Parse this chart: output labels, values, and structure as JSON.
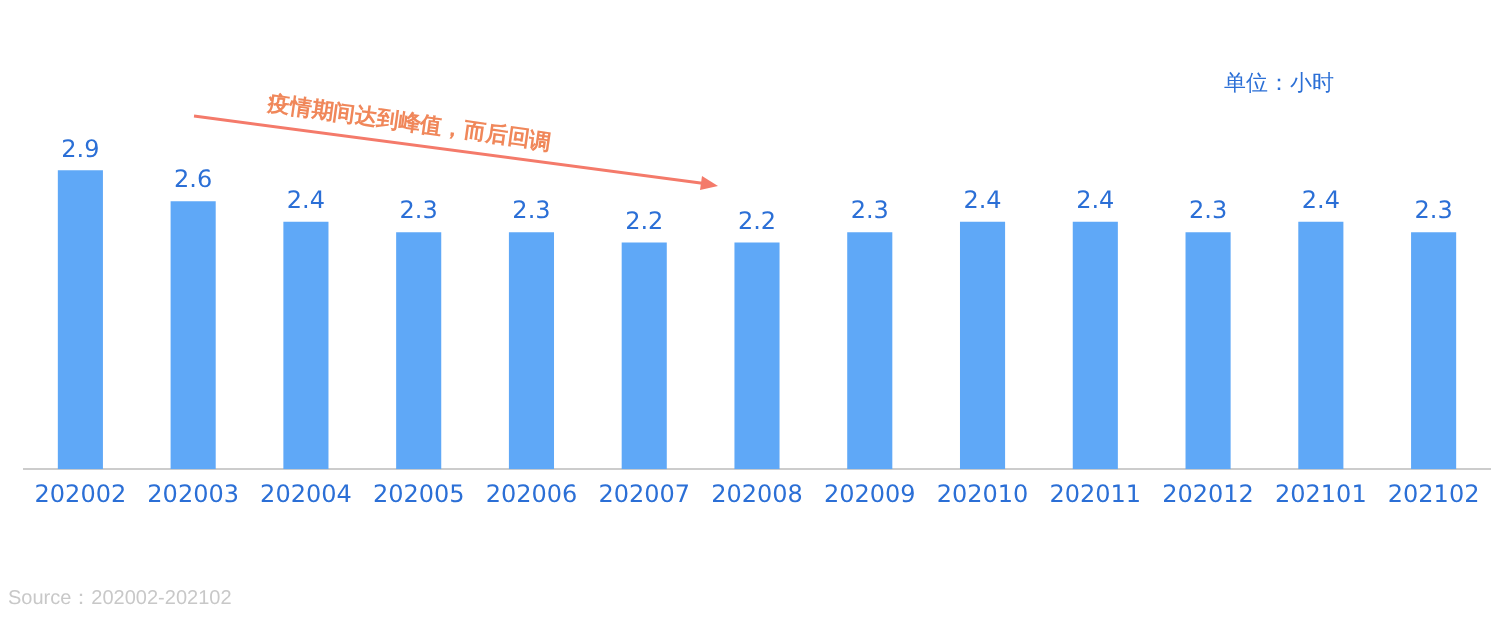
{
  "chart_data": {
    "type": "bar",
    "categories": [
      "202002",
      "202003",
      "202004",
      "202005",
      "202006",
      "202007",
      "202008",
      "202009",
      "202010",
      "202011",
      "202012",
      "202101",
      "202102"
    ],
    "values": [
      2.9,
      2.6,
      2.4,
      2.3,
      2.3,
      2.2,
      2.2,
      2.3,
      2.4,
      2.4,
      2.3,
      2.4,
      2.3
    ],
    "color": "#5fa8f7",
    "data_labels": true,
    "grid": false,
    "legend": false,
    "annotations": [
      "疫情期间达到峰值，而后回调",
      "单位：小时",
      "Source：202002-202102"
    ]
  }
}
